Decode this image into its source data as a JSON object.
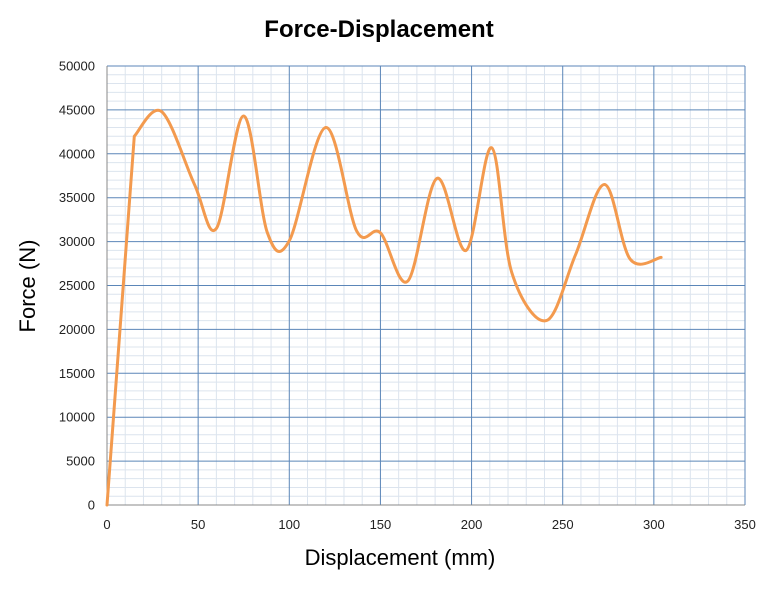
{
  "chart_data": {
    "type": "line",
    "title": "Force-Displacement",
    "xlabel": "Displacement (mm)",
    "ylabel": "Force (N)",
    "xlim": [
      0,
      350
    ],
    "ylim": [
      0,
      50000
    ],
    "x_ticks": [
      0,
      50,
      100,
      150,
      200,
      250,
      300,
      350
    ],
    "y_ticks": [
      0,
      5000,
      10000,
      15000,
      20000,
      25000,
      30000,
      35000,
      40000,
      45000,
      50000
    ],
    "x_tick_labels": [
      "0",
      "50",
      "100",
      "150",
      "200",
      "250",
      "300",
      "350"
    ],
    "y_tick_labels": [
      "0",
      "5000",
      "10000",
      "15000",
      "20000",
      "25000",
      "30000",
      "35000",
      "40000",
      "45000",
      "50000"
    ],
    "grid": true,
    "legend": "none",
    "colors": {
      "line": "#F39A4E",
      "major_grid": "#5B86B8",
      "minor_grid": "#DCE4EE",
      "axis": "#888888"
    },
    "series": [
      {
        "x": [
          0,
          15,
          30,
          48,
          60,
          75,
          88,
          100,
          120,
          137,
          150,
          165,
          181,
          197,
          211,
          222,
          241,
          257,
          273,
          287,
          304
        ],
        "y": [
          0,
          42000,
          44800,
          36500,
          31500,
          44300,
          31000,
          30100,
          43000,
          31200,
          31000,
          25500,
          37200,
          29000,
          40700,
          26500,
          21000,
          28500,
          36500,
          28000,
          28200
        ]
      }
    ]
  }
}
